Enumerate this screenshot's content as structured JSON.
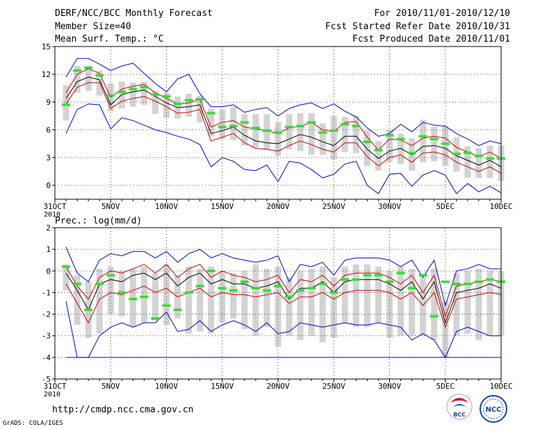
{
  "header": {
    "title": "DERF/NCC/BCC Monthly Forecast",
    "member_size": "Member Size=40",
    "variable": "Mean Surf. Temp.: °C",
    "period": "For 2010/11/01-2010/12/10",
    "fcst_started": "Fcst Started Refer Date 2010/10/31",
    "fcst_produced": "Fcst Produced Date 2010/11/01"
  },
  "footer": {
    "url": "http://cmdp.ncc.cma.gov.cn",
    "credit": "GrADS: COLA/IGES",
    "logo_bcc": "BCC",
    "logo_ncc": "NCC"
  },
  "colors": {
    "ensemble_mean": "#000000",
    "inner_band": "#cc0000",
    "outer_envelope": "#0000cc",
    "median_marker": "#33dd33",
    "box": "#d3d3d3"
  },
  "chart_data": [
    {
      "type": "line",
      "title": "Mean Surf. Temp.: °C",
      "ylim": [
        -1.5,
        15
      ],
      "yticks": [
        0,
        3,
        6,
        9,
        12,
        15
      ],
      "x_ticks": [
        {
          "day": 0,
          "label": "31OCT",
          "sub": "2010"
        },
        {
          "day": 5,
          "label": "5NOV"
        },
        {
          "day": 10,
          "label": "10NOV"
        },
        {
          "day": 15,
          "label": "15NOV"
        },
        {
          "day": 20,
          "label": "20NOV"
        },
        {
          "day": 25,
          "label": "25NOV"
        },
        {
          "day": 30,
          "label": "30NOV"
        },
        {
          "day": 35,
          "label": "5DEC"
        },
        {
          "day": 40,
          "label": "10DEC"
        }
      ],
      "days": [
        1,
        2,
        3,
        4,
        5,
        6,
        7,
        8,
        9,
        10,
        11,
        12,
        13,
        14,
        15,
        16,
        17,
        18,
        19,
        20,
        21,
        22,
        23,
        24,
        25,
        26,
        27,
        28,
        29,
        30,
        31,
        32,
        33,
        34,
        35,
        36,
        37,
        38,
        39,
        40
      ],
      "series": [
        {
          "name": "max",
          "values": [
            11.7,
            13.7,
            13.7,
            13.1,
            12.4,
            12.9,
            13.2,
            12.1,
            11.0,
            10.1,
            11.5,
            12.0,
            9.9,
            8.5,
            8.5,
            8.7,
            7.9,
            8.2,
            8.4,
            7.5,
            8.3,
            8.7,
            8.9,
            8.3,
            8.8,
            8.0,
            7.4,
            6.2,
            5.3,
            5.6,
            6.6,
            5.8,
            6.8,
            6.5,
            6.4,
            5.6,
            5.0,
            4.3,
            4.8,
            4.5
          ]
        },
        {
          "name": "upper",
          "values": [
            10.0,
            12.0,
            12.6,
            12.1,
            9.5,
            10.4,
            10.7,
            10.9,
            10.0,
            9.4,
            8.8,
            8.9,
            9.3,
            6.3,
            6.8,
            7.0,
            6.3,
            6.1,
            5.9,
            5.6,
            6.2,
            6.4,
            6.8,
            6.0,
            5.8,
            6.8,
            6.9,
            5.2,
            3.8,
            5.0,
            4.9,
            4.3,
            5.1,
            5.3,
            5.1,
            4.1,
            3.6,
            3.1,
            3.6,
            2.9
          ]
        },
        {
          "name": "mean",
          "values": [
            9.4,
            11.2,
            11.7,
            11.4,
            8.7,
            9.8,
            10.1,
            10.3,
            9.6,
            8.9,
            8.4,
            8.5,
            8.7,
            5.6,
            5.9,
            6.3,
            5.4,
            4.8,
            4.6,
            4.5,
            5.0,
            5.5,
            5.2,
            4.7,
            4.3,
            5.3,
            5.3,
            3.9,
            2.9,
            3.7,
            4.0,
            3.3,
            4.2,
            4.3,
            4.0,
            3.2,
            2.7,
            2.2,
            2.7,
            2.0
          ]
        },
        {
          "name": "lower",
          "values": [
            8.8,
            10.6,
            11.1,
            11.1,
            8.3,
            9.1,
            9.4,
            9.6,
            9.1,
            8.5,
            7.8,
            7.9,
            8.2,
            4.8,
            5.2,
            5.6,
            4.6,
            4.0,
            3.9,
            3.7,
            4.3,
            4.8,
            4.4,
            3.9,
            3.6,
            4.6,
            4.6,
            3.1,
            2.1,
            3.0,
            3.3,
            2.5,
            3.5,
            3.6,
            3.3,
            2.5,
            2.0,
            1.5,
            2.0,
            1.3
          ]
        },
        {
          "name": "min",
          "values": [
            5.6,
            8.2,
            8.8,
            8.7,
            6.1,
            7.3,
            7.0,
            6.5,
            6.0,
            5.7,
            5.3,
            5.0,
            4.4,
            2.0,
            3.0,
            2.6,
            1.7,
            1.6,
            2.2,
            0.4,
            2.6,
            2.4,
            1.7,
            0.8,
            1.2,
            2.3,
            2.6,
            0.0,
            -0.9,
            1.2,
            1.3,
            -0.1,
            1.1,
            1.6,
            1.1,
            -0.9,
            0.2,
            -0.7,
            -0.1,
            -0.8
          ]
        },
        {
          "name": "median",
          "values": [
            8.7,
            12.4,
            12.7,
            11.9,
            9.7,
            10.1,
            10.4,
            10.6,
            9.8,
            9.6,
            8.8,
            9.2,
            9.3,
            7.8,
            6.3,
            6.4,
            6.8,
            6.2,
            5.9,
            5.7,
            6.3,
            6.4,
            6.8,
            5.7,
            5.9,
            6.6,
            6.4,
            4.7,
            3.8,
            5.4,
            5.0,
            3.5,
            5.3,
            5.0,
            4.5,
            3.4,
            3.5,
            3.2,
            2.9,
            2.9
          ]
        },
        {
          "name": "box_top",
          "values": [
            10.8,
            12.9,
            12.9,
            12.4,
            11.0,
            11.2,
            11.1,
            11.2,
            10.2,
            10.0,
            9.6,
            9.9,
            9.7,
            8.3,
            8.2,
            8.5,
            7.7,
            7.7,
            7.7,
            6.8,
            7.7,
            7.8,
            7.8,
            6.7,
            7.5,
            7.4,
            7.5,
            5.9,
            4.8,
            6.0,
            5.6,
            5.1,
            7.1,
            6.3,
            6.4,
            5.2,
            4.2,
            4.0,
            4.3,
            4.3
          ]
        },
        {
          "name": "box_bottom",
          "values": [
            7.0,
            10.0,
            10.2,
            9.7,
            8.0,
            8.3,
            8.5,
            8.7,
            7.7,
            7.3,
            7.2,
            7.4,
            6.8,
            5.3,
            5.0,
            4.9,
            4.3,
            4.1,
            3.8,
            3.2,
            3.9,
            3.7,
            3.3,
            3.3,
            2.8,
            3.6,
            3.5,
            2.1,
            1.6,
            2.5,
            2.3,
            1.6,
            2.5,
            2.6,
            2.1,
            1.5,
            0.8,
            0.8,
            0.8,
            0.5
          ]
        }
      ]
    },
    {
      "type": "line",
      "title": "Prec.: log(mm/d)",
      "ylim": [
        -5,
        2
      ],
      "yticks": [
        -5,
        -4,
        -3,
        -2,
        -1,
        0,
        1,
        2
      ],
      "x_ticks": [
        {
          "day": 0,
          "label": "31OCT",
          "sub": "2010"
        },
        {
          "day": 5,
          "label": "5NOV"
        },
        {
          "day": 10,
          "label": "10NOV"
        },
        {
          "day": 15,
          "label": "15NOV"
        },
        {
          "day": 20,
          "label": "20NOV"
        },
        {
          "day": 25,
          "label": "25NOV"
        },
        {
          "day": 30,
          "label": "30NOV"
        },
        {
          "day": 35,
          "label": "5DEC"
        },
        {
          "day": 40,
          "label": "10DEC"
        }
      ],
      "days": [
        1,
        2,
        3,
        4,
        5,
        6,
        7,
        8,
        9,
        10,
        11,
        12,
        13,
        14,
        15,
        16,
        17,
        18,
        19,
        20,
        21,
        22,
        23,
        24,
        25,
        26,
        27,
        28,
        29,
        30,
        31,
        32,
        33,
        34,
        35,
        36,
        37,
        38,
        39,
        40
      ],
      "series": [
        {
          "name": "max",
          "values": [
            1.1,
            -0.1,
            -0.5,
            0.5,
            0.8,
            0.7,
            0.9,
            0.9,
            0.6,
            0.9,
            0.4,
            0.8,
            1.0,
            0.6,
            0.8,
            0.6,
            0.5,
            0.4,
            0.5,
            0.7,
            -0.5,
            0.3,
            0.2,
            0.4,
            -0.2,
            0.5,
            0.6,
            0.6,
            0.6,
            0.5,
            0.2,
            0.5,
            -0.3,
            0.5,
            -1.6,
            0.0,
            0.1,
            0.3,
            0.1,
            0.1
          ]
        },
        {
          "name": "upper",
          "values": [
            0.2,
            -0.7,
            -1.3,
            -0.3,
            0.0,
            -0.1,
            0.1,
            0.3,
            -0.1,
            0.3,
            -0.3,
            0.1,
            0.3,
            -0.3,
            0.0,
            -0.2,
            -0.3,
            -0.5,
            -0.4,
            -0.2,
            -1.0,
            -0.4,
            -0.5,
            -0.2,
            -0.7,
            -0.2,
            -0.1,
            -0.1,
            -0.1,
            -0.3,
            -0.6,
            -0.2,
            -1.0,
            -0.2,
            -2.1,
            -0.7,
            -0.6,
            -0.5,
            -0.4,
            -0.5
          ]
        },
        {
          "name": "mean",
          "values": [
            -0.1,
            -0.9,
            -1.8,
            -0.6,
            -0.4,
            -0.5,
            -0.2,
            -0.1,
            -0.4,
            -0.1,
            -0.7,
            -0.3,
            -0.1,
            -0.6,
            -0.4,
            -0.6,
            -0.6,
            -0.8,
            -0.7,
            -0.5,
            -1.3,
            -0.8,
            -0.8,
            -0.5,
            -1.0,
            -0.5,
            -0.4,
            -0.4,
            -0.4,
            -0.6,
            -0.9,
            -0.5,
            -1.3,
            -0.5,
            -2.4,
            -1.0,
            -0.9,
            -0.8,
            -0.6,
            -0.8
          ]
        },
        {
          "name": "lower",
          "values": [
            -0.6,
            -1.5,
            -2.4,
            -1.3,
            -1.0,
            -1.1,
            -0.9,
            -0.7,
            -1.0,
            -0.8,
            -1.2,
            -1.0,
            -0.8,
            -1.2,
            -1.0,
            -1.1,
            -1.1,
            -1.2,
            -1.1,
            -1.0,
            -1.5,
            -1.2,
            -1.2,
            -1.0,
            -1.3,
            -1.0,
            -0.9,
            -0.9,
            -0.9,
            -1.0,
            -1.3,
            -1.0,
            -1.6,
            -1.0,
            -2.6,
            -1.3,
            -1.2,
            -1.1,
            -1.0,
            -1.1
          ]
        },
        {
          "name": "min",
          "values": [
            -1.4,
            -4.0,
            -4.0,
            -3.0,
            -2.6,
            -2.4,
            -2.6,
            -2.4,
            -2.4,
            -1.9,
            -2.8,
            -2.7,
            -2.3,
            -2.8,
            -2.5,
            -2.3,
            -2.5,
            -2.8,
            -2.4,
            -2.9,
            -2.8,
            -2.4,
            -2.5,
            -2.6,
            -2.5,
            -2.4,
            -2.5,
            -2.5,
            -2.4,
            -2.5,
            -2.6,
            -3.2,
            -2.9,
            -3.2,
            -4.0,
            -2.8,
            -2.6,
            -2.8,
            -3.0,
            -3.0
          ]
        },
        {
          "name": "median",
          "values": [
            0.2,
            -0.6,
            -1.8,
            -0.6,
            -0.2,
            -1.0,
            -1.3,
            -1.2,
            -2.2,
            -1.6,
            -1.8,
            -1.0,
            -0.7,
            0.0,
            -0.8,
            -0.9,
            -0.5,
            -0.8,
            -0.9,
            -0.7,
            -1.2,
            -0.9,
            -0.8,
            -0.6,
            -1.0,
            -0.4,
            -0.4,
            -0.2,
            -0.2,
            -0.5,
            -0.1,
            -0.8,
            -0.2,
            -2.1,
            -0.5,
            -0.6,
            -0.6,
            -0.5,
            -0.4,
            -0.5
          ]
        },
        {
          "name": "box_top",
          "values": [
            0.3,
            -0.2,
            -0.5,
            0.1,
            0.2,
            0.0,
            0.1,
            0.2,
            -0.1,
            0.3,
            -0.2,
            0.2,
            0.1,
            0.2,
            0.0,
            -0.1,
            0.0,
            0.3,
            0.1,
            0.2,
            -0.3,
            0.0,
            0.1,
            0.2,
            -0.3,
            0.2,
            0.3,
            0.3,
            0.2,
            0.0,
            0.2,
            0.1,
            -0.2,
            0.1,
            -1.4,
            -0.1,
            0.0,
            0.1,
            0.0,
            0.0
          ]
        },
        {
          "name": "box_bottom",
          "values": [
            -0.9,
            -2.5,
            -3.1,
            -2.9,
            -2.0,
            -2.1,
            -2.6,
            -2.4,
            -2.3,
            -2.5,
            -2.2,
            -2.9,
            -2.8,
            -2.9,
            -2.4,
            -2.2,
            -2.7,
            -3.0,
            -2.6,
            -3.5,
            -3.0,
            -3.2,
            -3.0,
            -3.3,
            -3.1,
            -2.4,
            -2.6,
            -2.6,
            -2.4,
            -3.1,
            -3.0,
            -3.0,
            -3.0,
            -3.2,
            -4.0,
            -3.0,
            -2.9,
            -3.2,
            -3.0,
            -3.0
          ]
        }
      ]
    }
  ]
}
